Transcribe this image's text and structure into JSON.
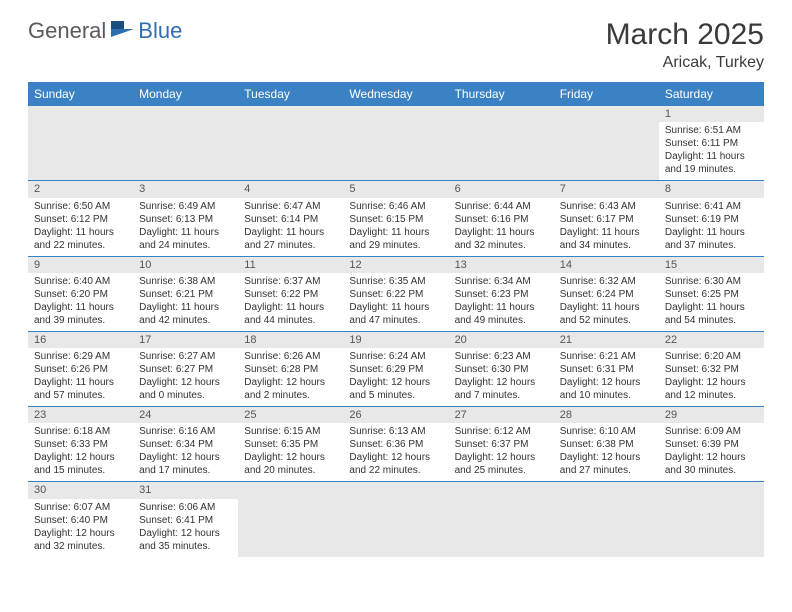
{
  "logo": {
    "general": "General",
    "blue": "Blue"
  },
  "title": {
    "month": "March 2025",
    "location": "Aricak, Turkey"
  },
  "header_bg": "#3b82c4",
  "days_of_week": [
    "Sunday",
    "Monday",
    "Tuesday",
    "Wednesday",
    "Thursday",
    "Friday",
    "Saturday"
  ],
  "weeks": [
    [
      null,
      null,
      null,
      null,
      null,
      null,
      {
        "n": "1",
        "sr": "Sunrise: 6:51 AM",
        "ss": "Sunset: 6:11 PM",
        "dl": "Daylight: 11 hours and 19 minutes."
      }
    ],
    [
      {
        "n": "2",
        "sr": "Sunrise: 6:50 AM",
        "ss": "Sunset: 6:12 PM",
        "dl": "Daylight: 11 hours and 22 minutes."
      },
      {
        "n": "3",
        "sr": "Sunrise: 6:49 AM",
        "ss": "Sunset: 6:13 PM",
        "dl": "Daylight: 11 hours and 24 minutes."
      },
      {
        "n": "4",
        "sr": "Sunrise: 6:47 AM",
        "ss": "Sunset: 6:14 PM",
        "dl": "Daylight: 11 hours and 27 minutes."
      },
      {
        "n": "5",
        "sr": "Sunrise: 6:46 AM",
        "ss": "Sunset: 6:15 PM",
        "dl": "Daylight: 11 hours and 29 minutes."
      },
      {
        "n": "6",
        "sr": "Sunrise: 6:44 AM",
        "ss": "Sunset: 6:16 PM",
        "dl": "Daylight: 11 hours and 32 minutes."
      },
      {
        "n": "7",
        "sr": "Sunrise: 6:43 AM",
        "ss": "Sunset: 6:17 PM",
        "dl": "Daylight: 11 hours and 34 minutes."
      },
      {
        "n": "8",
        "sr": "Sunrise: 6:41 AM",
        "ss": "Sunset: 6:19 PM",
        "dl": "Daylight: 11 hours and 37 minutes."
      }
    ],
    [
      {
        "n": "9",
        "sr": "Sunrise: 6:40 AM",
        "ss": "Sunset: 6:20 PM",
        "dl": "Daylight: 11 hours and 39 minutes."
      },
      {
        "n": "10",
        "sr": "Sunrise: 6:38 AM",
        "ss": "Sunset: 6:21 PM",
        "dl": "Daylight: 11 hours and 42 minutes."
      },
      {
        "n": "11",
        "sr": "Sunrise: 6:37 AM",
        "ss": "Sunset: 6:22 PM",
        "dl": "Daylight: 11 hours and 44 minutes."
      },
      {
        "n": "12",
        "sr": "Sunrise: 6:35 AM",
        "ss": "Sunset: 6:22 PM",
        "dl": "Daylight: 11 hours and 47 minutes."
      },
      {
        "n": "13",
        "sr": "Sunrise: 6:34 AM",
        "ss": "Sunset: 6:23 PM",
        "dl": "Daylight: 11 hours and 49 minutes."
      },
      {
        "n": "14",
        "sr": "Sunrise: 6:32 AM",
        "ss": "Sunset: 6:24 PM",
        "dl": "Daylight: 11 hours and 52 minutes."
      },
      {
        "n": "15",
        "sr": "Sunrise: 6:30 AM",
        "ss": "Sunset: 6:25 PM",
        "dl": "Daylight: 11 hours and 54 minutes."
      }
    ],
    [
      {
        "n": "16",
        "sr": "Sunrise: 6:29 AM",
        "ss": "Sunset: 6:26 PM",
        "dl": "Daylight: 11 hours and 57 minutes."
      },
      {
        "n": "17",
        "sr": "Sunrise: 6:27 AM",
        "ss": "Sunset: 6:27 PM",
        "dl": "Daylight: 12 hours and 0 minutes."
      },
      {
        "n": "18",
        "sr": "Sunrise: 6:26 AM",
        "ss": "Sunset: 6:28 PM",
        "dl": "Daylight: 12 hours and 2 minutes."
      },
      {
        "n": "19",
        "sr": "Sunrise: 6:24 AM",
        "ss": "Sunset: 6:29 PM",
        "dl": "Daylight: 12 hours and 5 minutes."
      },
      {
        "n": "20",
        "sr": "Sunrise: 6:23 AM",
        "ss": "Sunset: 6:30 PM",
        "dl": "Daylight: 12 hours and 7 minutes."
      },
      {
        "n": "21",
        "sr": "Sunrise: 6:21 AM",
        "ss": "Sunset: 6:31 PM",
        "dl": "Daylight: 12 hours and 10 minutes."
      },
      {
        "n": "22",
        "sr": "Sunrise: 6:20 AM",
        "ss": "Sunset: 6:32 PM",
        "dl": "Daylight: 12 hours and 12 minutes."
      }
    ],
    [
      {
        "n": "23",
        "sr": "Sunrise: 6:18 AM",
        "ss": "Sunset: 6:33 PM",
        "dl": "Daylight: 12 hours and 15 minutes."
      },
      {
        "n": "24",
        "sr": "Sunrise: 6:16 AM",
        "ss": "Sunset: 6:34 PM",
        "dl": "Daylight: 12 hours and 17 minutes."
      },
      {
        "n": "25",
        "sr": "Sunrise: 6:15 AM",
        "ss": "Sunset: 6:35 PM",
        "dl": "Daylight: 12 hours and 20 minutes."
      },
      {
        "n": "26",
        "sr": "Sunrise: 6:13 AM",
        "ss": "Sunset: 6:36 PM",
        "dl": "Daylight: 12 hours and 22 minutes."
      },
      {
        "n": "27",
        "sr": "Sunrise: 6:12 AM",
        "ss": "Sunset: 6:37 PM",
        "dl": "Daylight: 12 hours and 25 minutes."
      },
      {
        "n": "28",
        "sr": "Sunrise: 6:10 AM",
        "ss": "Sunset: 6:38 PM",
        "dl": "Daylight: 12 hours and 27 minutes."
      },
      {
        "n": "29",
        "sr": "Sunrise: 6:09 AM",
        "ss": "Sunset: 6:39 PM",
        "dl": "Daylight: 12 hours and 30 minutes."
      }
    ],
    [
      {
        "n": "30",
        "sr": "Sunrise: 6:07 AM",
        "ss": "Sunset: 6:40 PM",
        "dl": "Daylight: 12 hours and 32 minutes."
      },
      {
        "n": "31",
        "sr": "Sunrise: 6:06 AM",
        "ss": "Sunset: 6:41 PM",
        "dl": "Daylight: 12 hours and 35 minutes."
      },
      null,
      null,
      null,
      null,
      null
    ]
  ]
}
